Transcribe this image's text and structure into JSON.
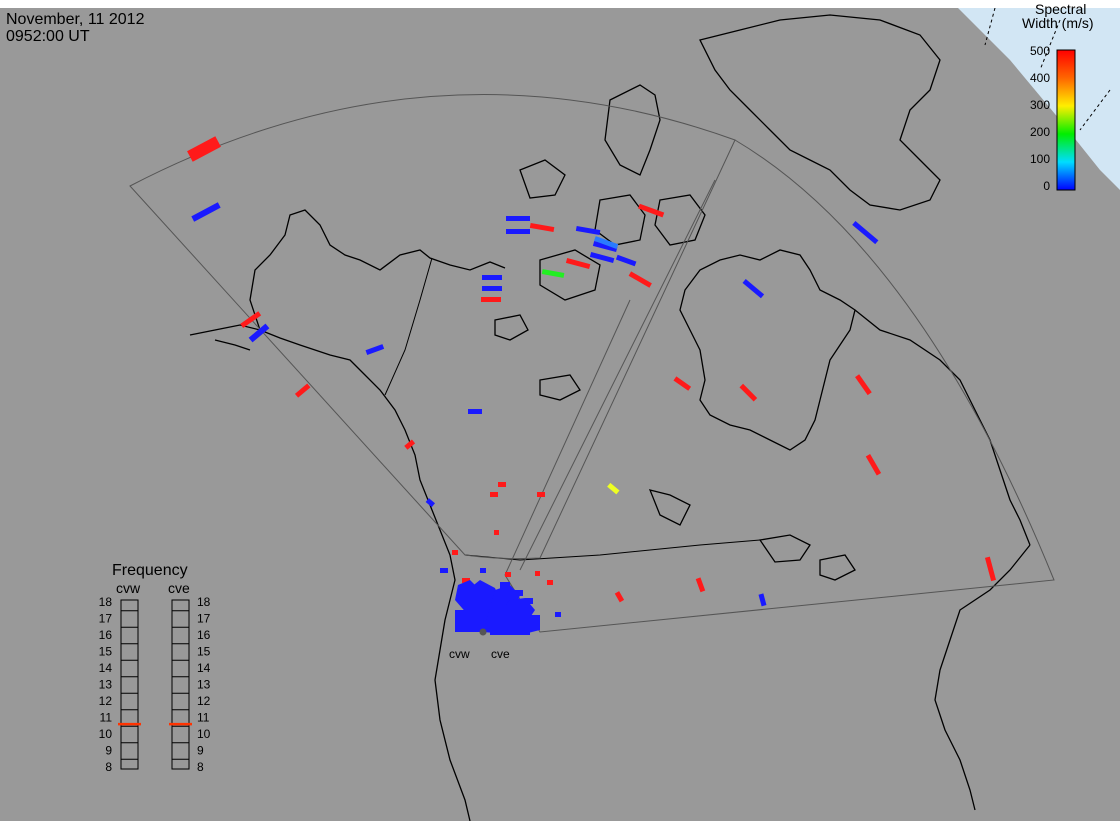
{
  "header": {
    "date": "November, 11 2012",
    "time": "0952:00 UT"
  },
  "colorbar": {
    "title_line1": "Spectral",
    "title_line2": "Width (m/s)",
    "ticks": [
      "500",
      "400",
      "300",
      "200",
      "100",
      "0"
    ],
    "colors": [
      "#ff0000",
      "#ff7700",
      "#ffff00",
      "#00ff00",
      "#00ffff",
      "#0000ff"
    ]
  },
  "frequency_panel": {
    "title": "Frequency",
    "radars": [
      {
        "label": "cvw",
        "selected": "10.6"
      },
      {
        "label": "cve",
        "selected": "10.6"
      }
    ],
    "scale": [
      "18",
      "17",
      "16",
      "15",
      "14",
      "13",
      "12",
      "11",
      "10",
      "9",
      "8"
    ],
    "marker_color": "#ff3300"
  },
  "radar_sites": [
    {
      "label": "cvw"
    },
    {
      "label": "cve"
    }
  ],
  "colors": {
    "background": "#999999",
    "coast": "#000000",
    "fov_outline": "#555555",
    "night": "#cfe6f6",
    "low_width": "#1a1aff",
    "high_width": "#ff1a1a"
  }
}
